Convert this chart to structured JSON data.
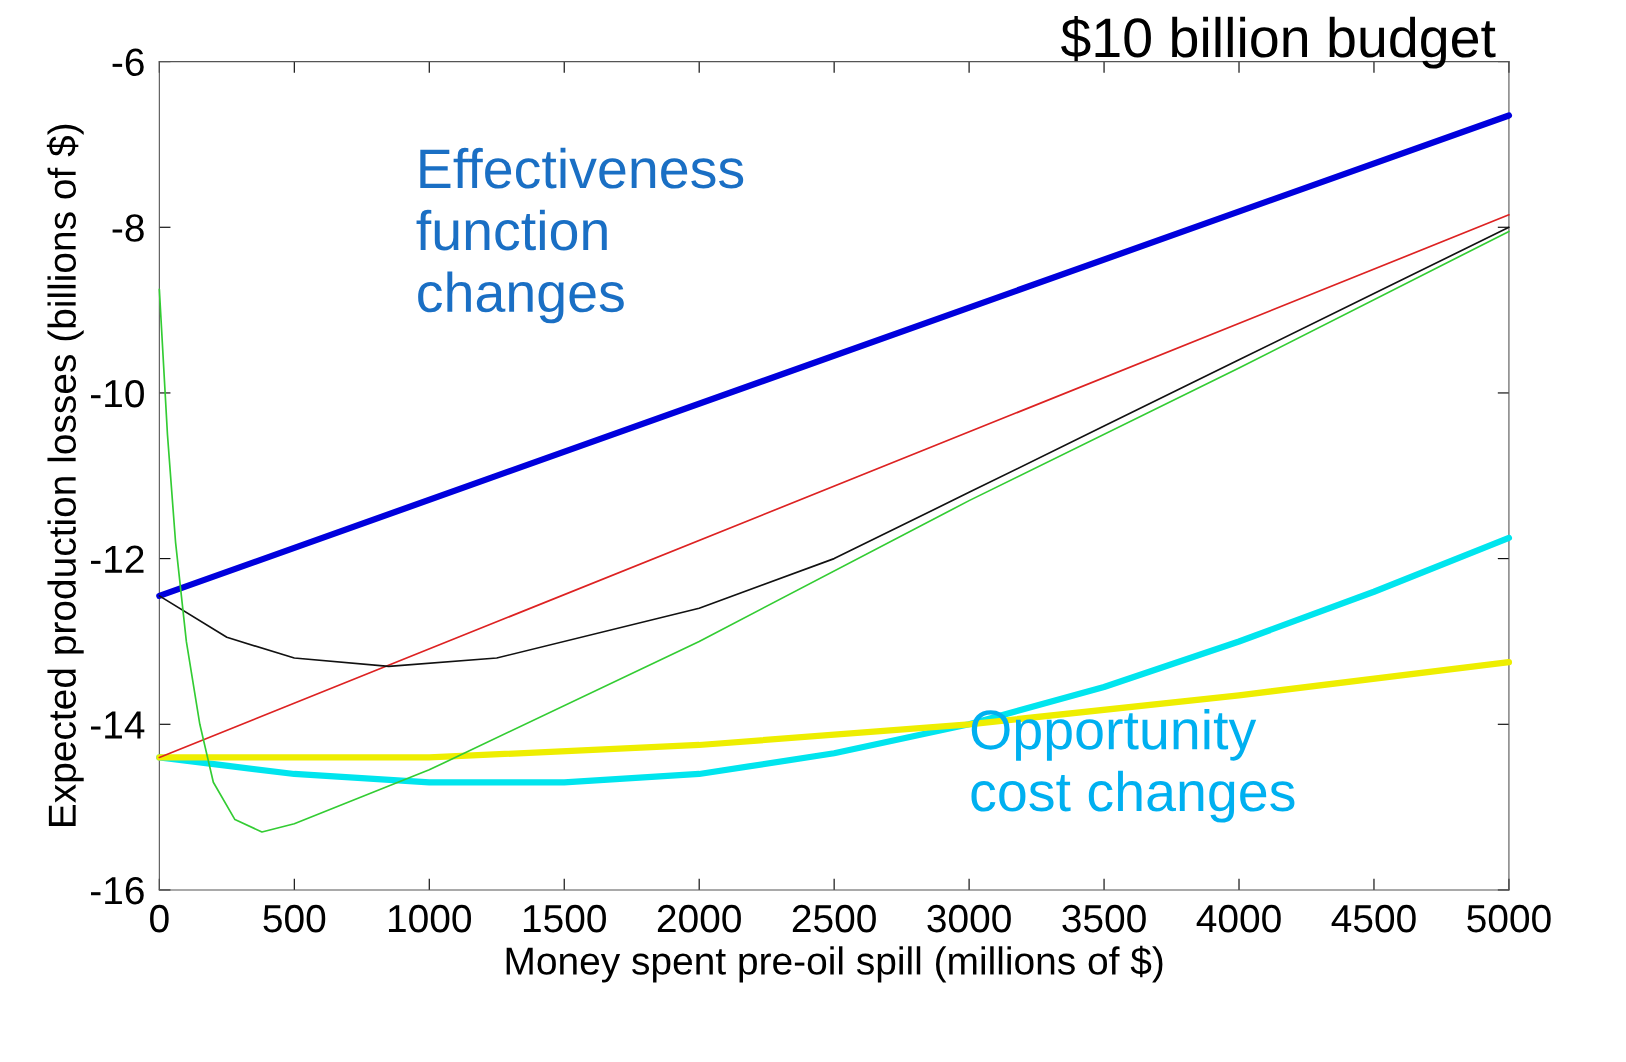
{
  "chart_data": {
    "type": "line",
    "xlabel": "Money spent pre-oil spill (millions of $)",
    "ylabel": "Expected production losses (billions of $)",
    "xlim": [
      0,
      5000
    ],
    "xticks": [
      0,
      500,
      1000,
      1500,
      2000,
      2500,
      3000,
      3500,
      4000,
      4500,
      5000
    ],
    "ylim": [
      -16,
      -6
    ],
    "yticks": [
      -16,
      -14,
      -12,
      -10,
      -8,
      -6
    ],
    "grid": false,
    "legend": false,
    "annotations": [
      "$10 billion budget",
      "Effectiveness\nfunction\nchanges",
      "Opportunity\ncost changes"
    ],
    "series": [
      {
        "color": "#0000dd",
        "x": [
          0,
          5000
        ],
        "values": [
          -12.45,
          -6.65
        ]
      },
      {
        "color": "#dd2222",
        "x": [
          0,
          5000
        ],
        "values": [
          -14.4,
          -7.85
        ]
      },
      {
        "color": "#111111",
        "x": [
          0,
          250,
          500,
          850,
          1250,
          2000,
          2500,
          3000,
          3500,
          4000,
          4500,
          5000
        ],
        "values": [
          -12.45,
          -12.95,
          -13.2,
          -13.3,
          -13.2,
          -12.6,
          -12.0,
          -11.2,
          -10.4,
          -9.6,
          -8.8,
          -8.0
        ]
      },
      {
        "color": "#33cc33",
        "x": [
          0,
          30,
          60,
          100,
          150,
          200,
          280,
          380,
          500,
          1000,
          2000,
          3000,
          4000,
          5000
        ],
        "values": [
          -8.75,
          -10.5,
          -11.8,
          -13.0,
          -14.0,
          -14.7,
          -15.15,
          -15.3,
          -15.2,
          -14.55,
          -13.0,
          -11.3,
          -9.7,
          -8.05
        ]
      },
      {
        "color": "#00e5ee",
        "x": [
          0,
          500,
          1000,
          1500,
          2000,
          2500,
          3000,
          3500,
          4000,
          4500,
          5000
        ],
        "values": [
          -14.4,
          -14.6,
          -14.7,
          -14.7,
          -14.6,
          -14.35,
          -14.0,
          -13.55,
          -13.0,
          -12.4,
          -11.75
        ]
      },
      {
        "color": "#eeee00",
        "x": [
          0,
          1000,
          2000,
          3000,
          4000,
          5000
        ],
        "values": [
          -14.4,
          -14.4,
          -14.25,
          -14.0,
          -13.65,
          -13.25
        ]
      }
    ]
  }
}
